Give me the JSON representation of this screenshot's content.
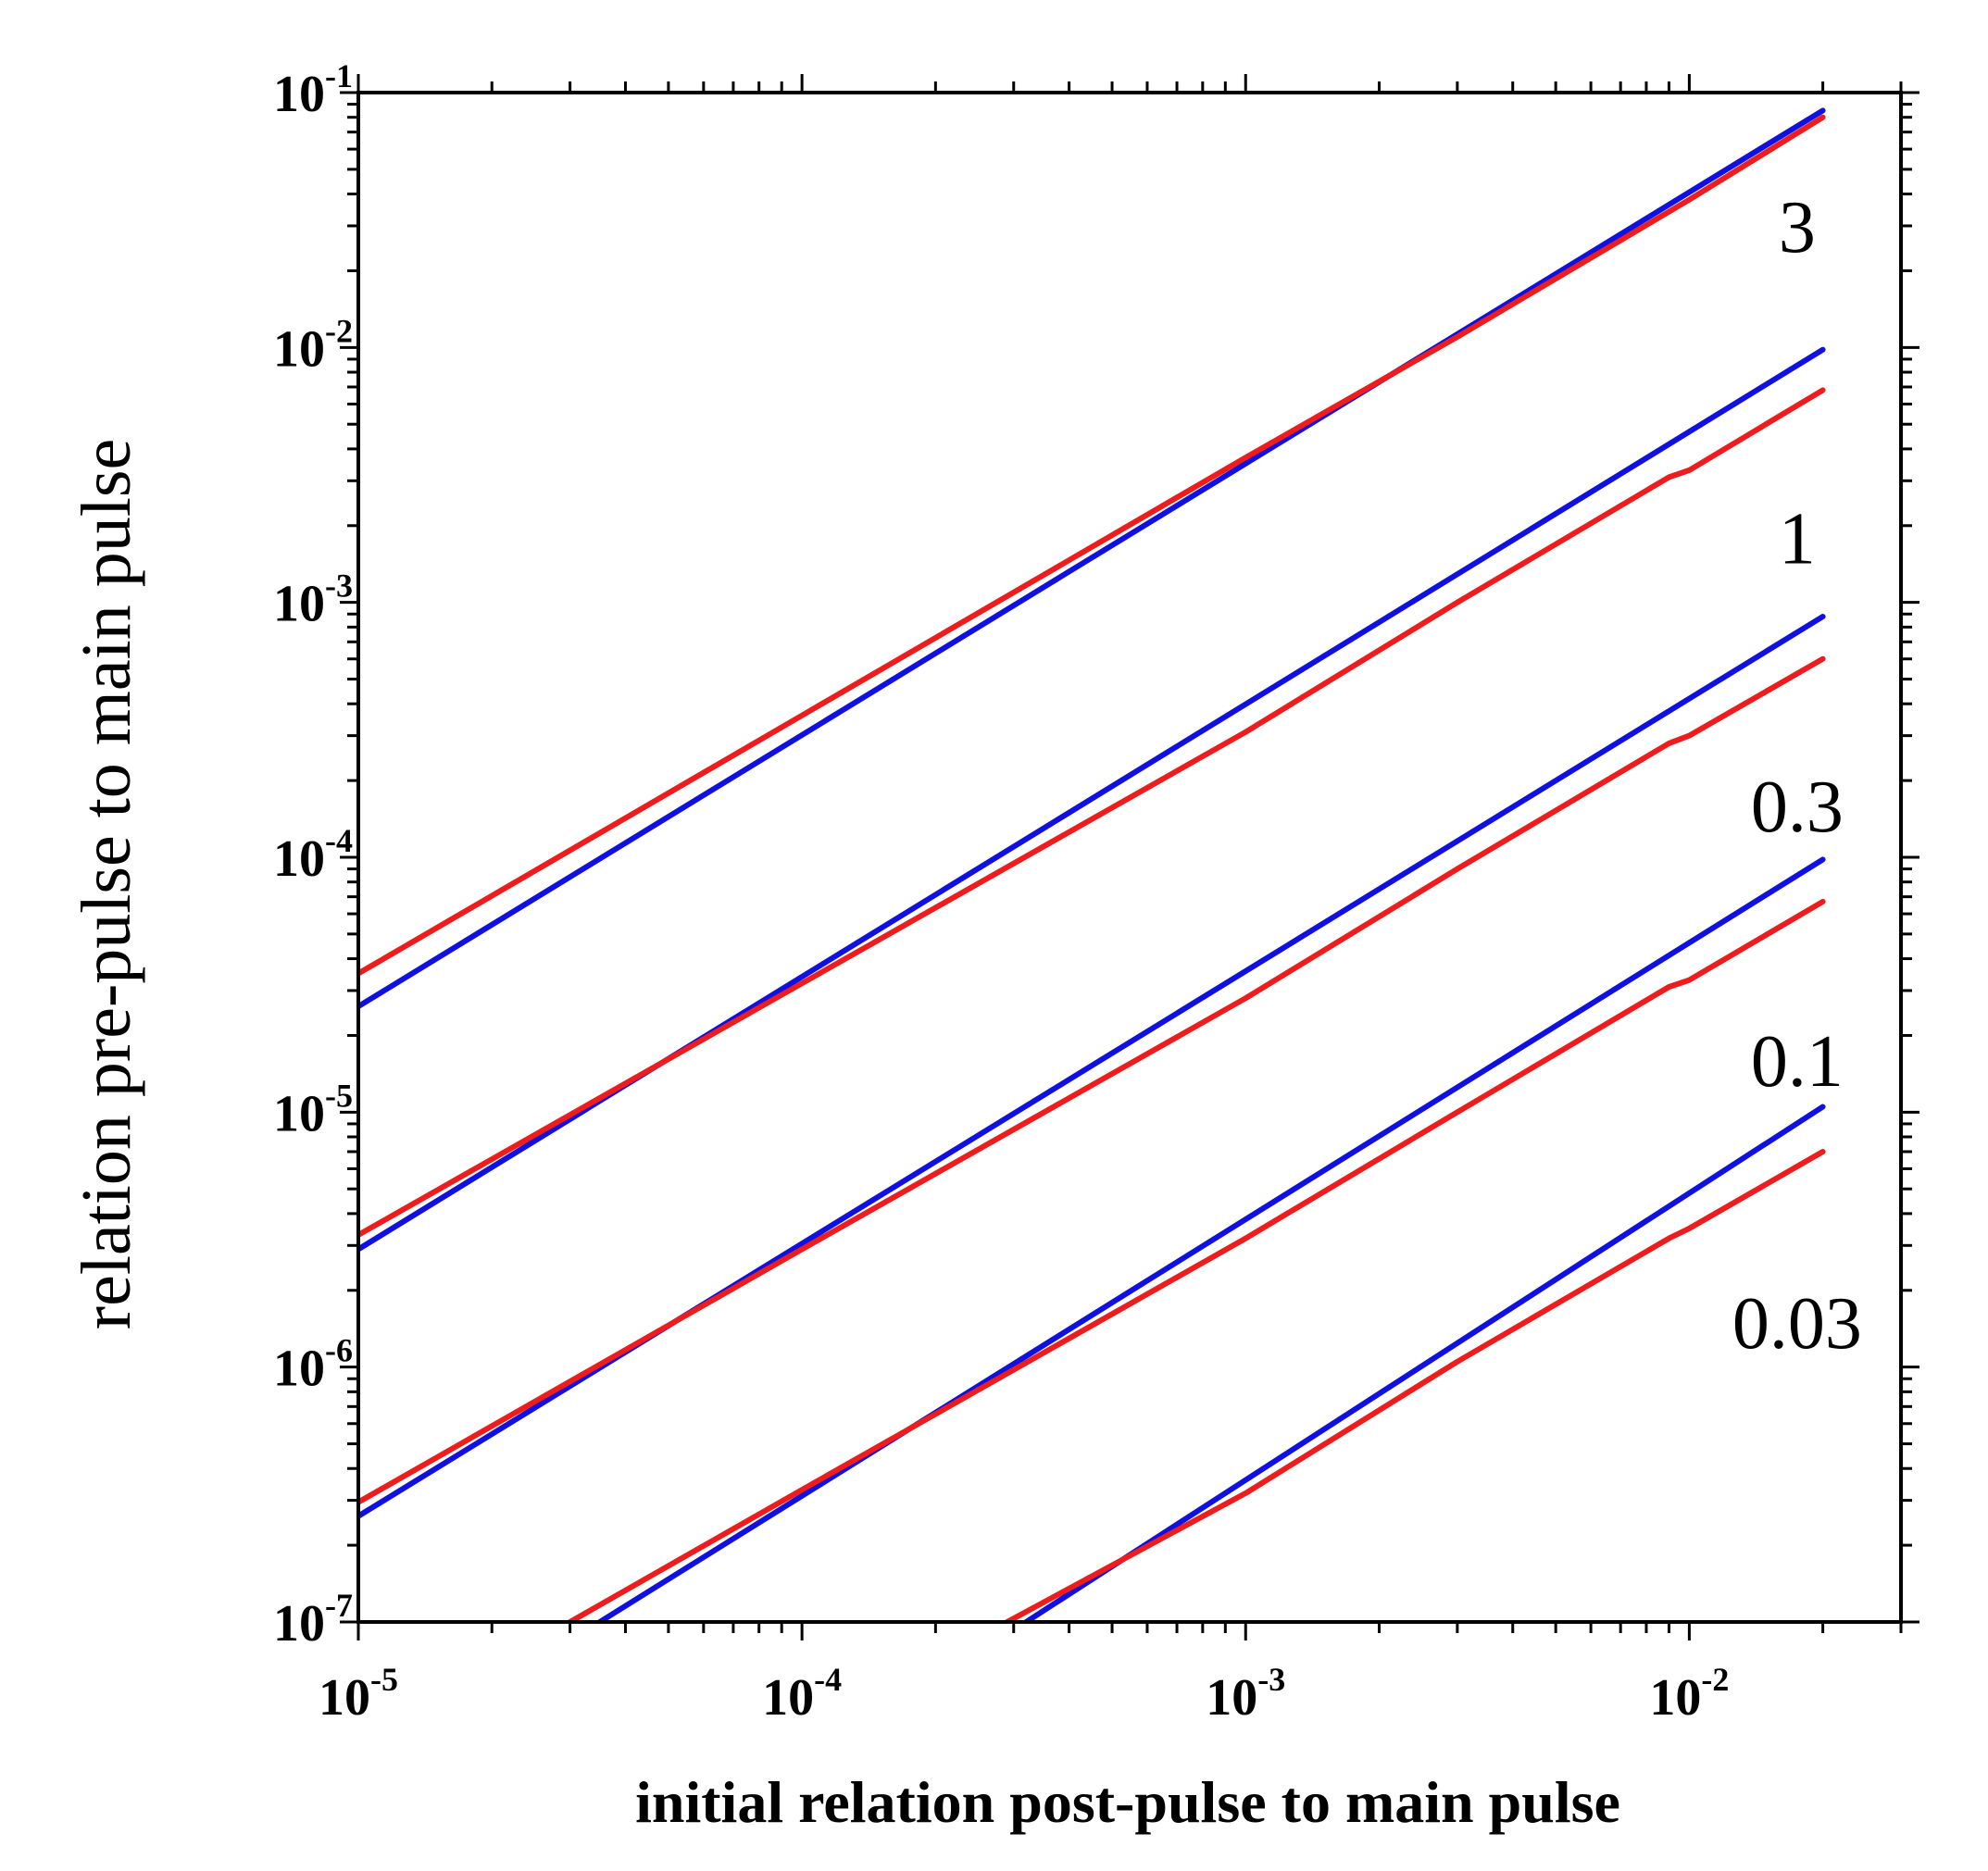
{
  "chart_data": {
    "type": "line",
    "title": "",
    "xlabel": "initial relation post-pulse to main pulse",
    "ylabel": "relation pre-pulse to main pulse",
    "xscale": "log",
    "yscale": "log",
    "xlim": [
      1e-05,
      0.03
    ],
    "ylim": [
      1e-07,
      0.1
    ],
    "grid": false,
    "colors": {
      "blue": "#1010e0",
      "red": "#ee1c1c"
    },
    "x_ticks": [
      {
        "value": 1e-05,
        "base": "10",
        "exp": "-5"
      },
      {
        "value": 0.0001,
        "base": "10",
        "exp": "-4"
      },
      {
        "value": 0.001,
        "base": "10",
        "exp": "-3"
      },
      {
        "value": 0.01,
        "base": "10",
        "exp": "-2"
      }
    ],
    "y_ticks": [
      {
        "value": 1e-07,
        "base": "10",
        "exp": "-7"
      },
      {
        "value": 1e-06,
        "base": "10",
        "exp": "-6"
      },
      {
        "value": 1e-05,
        "base": "10",
        "exp": "-5"
      },
      {
        "value": 0.0001,
        "base": "10",
        "exp": "-4"
      },
      {
        "value": 0.001,
        "base": "10",
        "exp": "-3"
      },
      {
        "value": 0.01,
        "base": "10",
        "exp": "-2"
      },
      {
        "value": 0.1,
        "base": "10",
        "exp": "-1"
      }
    ],
    "annotations": [
      {
        "text": "3",
        "x": 0.0175,
        "y": 0.03
      },
      {
        "text": "1",
        "x": 0.0175,
        "y": 0.0018
      },
      {
        "text": "0.3",
        "x": 0.0175,
        "y": 0.00016
      },
      {
        "text": "0.1",
        "x": 0.0175,
        "y": 1.6e-05
      },
      {
        "text": "0.03",
        "x": 0.0175,
        "y": 1.5e-06
      }
    ],
    "series": [
      {
        "name": "3 (blue)",
        "color": "blue",
        "x": [
          1e-05,
          0.02
        ],
        "y": [
          2.6e-05,
          0.085
        ]
      },
      {
        "name": "3 (red)",
        "color": "red",
        "x": [
          1e-05,
          0.0001,
          0.001,
          0.003,
          0.01,
          0.02
        ],
        "y": [
          3.5e-05,
          0.00036,
          0.0037,
          0.011,
          0.038,
          0.08
        ]
      },
      {
        "name": "1 (blue)",
        "color": "blue",
        "x": [
          1e-05,
          0.02
        ],
        "y": [
          2.9e-06,
          0.0098
        ]
      },
      {
        "name": "1 (red)",
        "color": "red",
        "x": [
          1e-05,
          0.0001,
          0.001,
          0.003,
          0.009,
          0.01,
          0.02
        ],
        "y": [
          3.3e-06,
          3.2e-05,
          0.00031,
          0.001,
          0.0031,
          0.0033,
          0.0068
        ]
      },
      {
        "name": "0.3 (blue)",
        "color": "blue",
        "x": [
          1e-05,
          0.02
        ],
        "y": [
          2.6e-07,
          0.00088
        ]
      },
      {
        "name": "0.3 (red)",
        "color": "red",
        "x": [
          1e-05,
          0.0001,
          0.001,
          0.003,
          0.009,
          0.01,
          0.02
        ],
        "y": [
          2.95e-07,
          2.9e-06,
          2.8e-05,
          9e-05,
          0.00028,
          0.0003,
          0.0006
        ]
      },
      {
        "name": "0.1 (blue)",
        "color": "blue",
        "x": [
          3.5e-05,
          0.02
        ],
        "y": [
          1e-07,
          9.8e-05
        ]
      },
      {
        "name": "0.1 (red)",
        "color": "red",
        "x": [
          3e-05,
          0.0001,
          0.001,
          0.003,
          0.009,
          0.01,
          0.02
        ],
        "y": [
          1e-07,
          3.3e-07,
          3.2e-06,
          1e-05,
          3.1e-05,
          3.3e-05,
          6.7e-05
        ]
      },
      {
        "name": "0.03 (blue)",
        "color": "blue",
        "x": [
          0.00032,
          0.02
        ],
        "y": [
          1e-07,
          1.05e-05
        ]
      },
      {
        "name": "0.03 (red)",
        "color": "red",
        "x": [
          0.00029,
          0.001,
          0.003,
          0.009,
          0.01,
          0.02
        ],
        "y": [
          1e-07,
          3.2e-07,
          1.05e-06,
          3.2e-06,
          3.5e-06,
          7e-06
        ]
      }
    ]
  }
}
